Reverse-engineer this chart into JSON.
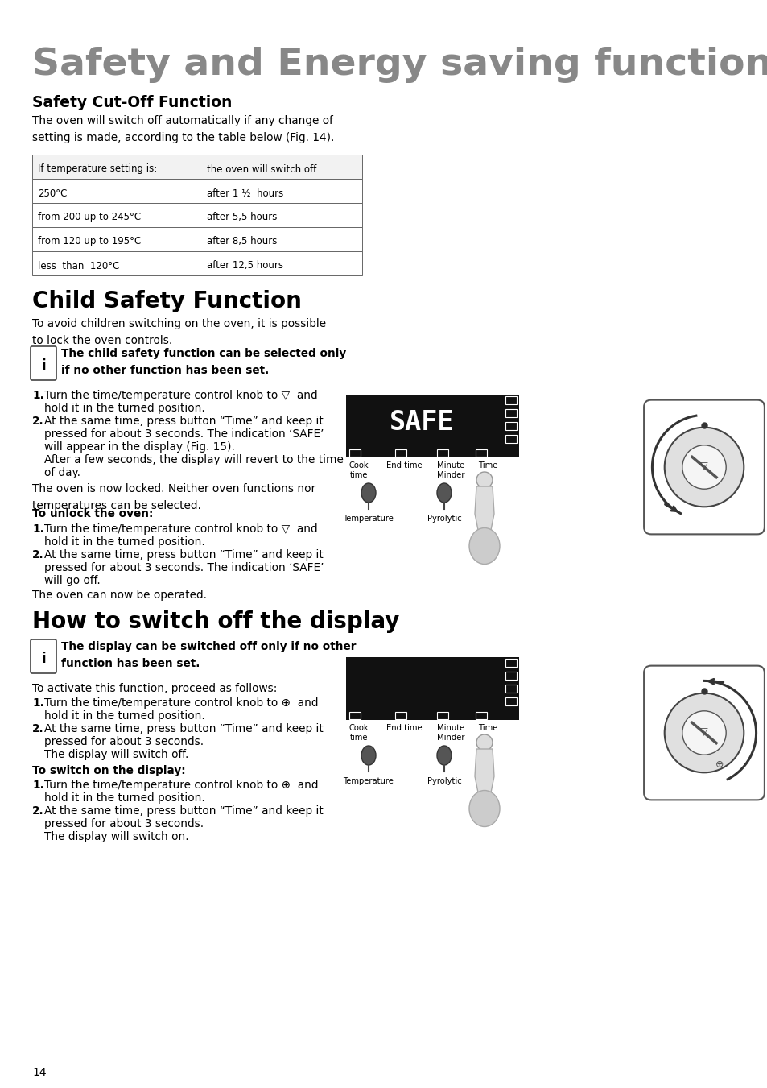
{
  "title": "Safety and Energy saving functions",
  "title_color": "#888888",
  "bg_color": "#ffffff",
  "text_color": "#000000",
  "page_number": "14",
  "section1_title": "Safety Cut-Off Function",
  "section1_body": "The oven will switch off automatically if any change of\nsetting is made, according to the table below (Fig. 14).",
  "table_headers": [
    "If temperature setting is:",
    "the oven will switch off:"
  ],
  "table_rows": [
    [
      "250°C",
      "after 1 ½  hours"
    ],
    [
      "from 200 up to 245°C",
      "after 5,5 hours"
    ],
    [
      "from 120 up to 195°C",
      "after 8,5 hours"
    ],
    [
      "less  than  120°C",
      "after 12,5 hours"
    ]
  ],
  "section2_title": "Child Safety Function",
  "section2_body1": "To avoid children switching on the oven, it is possible\nto lock the oven controls.",
  "section2_info": "The child safety function can be selected only\nif no other function has been set.",
  "section2_step1a": "Turn the time/temperature control knob to ▽  and",
  "section2_step1b": "hold it in the turned position.",
  "section2_step2a": "At the same time, press button “Time” and keep it",
  "section2_step2b": "pressed for about 3 seconds. The indication ‘SAFE’",
  "section2_step2c": "will appear in the display (Fig. 15).",
  "section2_step2d": "After a few seconds, the display will revert to the time",
  "section2_step2e": "of day.",
  "section2_body2": "The oven is now locked. Neither oven functions nor\ntemperatures can be selected.",
  "unlock_title": "To unlock the oven:",
  "unlock_step1a": "Turn the time/temperature control knob to ▽  and",
  "unlock_step1b": "hold it in the turned position.",
  "unlock_step2a": "At the same time, press button “Time” and keep it",
  "unlock_step2b": "pressed for about 3 seconds. The indication ‘SAFE’",
  "unlock_step2c": "will go off.",
  "unlock_body": "The oven can now be operated.",
  "section3_title": "How to switch off the display",
  "section3_info": "The display can be switched off only if no other\nfunction has been set.",
  "section3_body1": "To activate this function, proceed as follows:",
  "section3_step1a": "Turn the time/temperature control knob to ⊕  and",
  "section3_step1b": "hold it in the turned position.",
  "section3_step2a": "At the same time, press button “Time” and keep it",
  "section3_step2b": "pressed for about 3 seconds.",
  "section3_step2c": "The display will switch off.",
  "switch_on_title": "To switch on the display:",
  "switch_on_step1a": "Turn the time/temperature control knob to ⊕  and",
  "switch_on_step1b": "hold it in the turned position.",
  "switch_on_step2a": "At the same time, press button “Time” and keep it",
  "switch_on_step2b": "pressed for about 3 seconds.",
  "switch_on_step2c": "The display will switch on."
}
